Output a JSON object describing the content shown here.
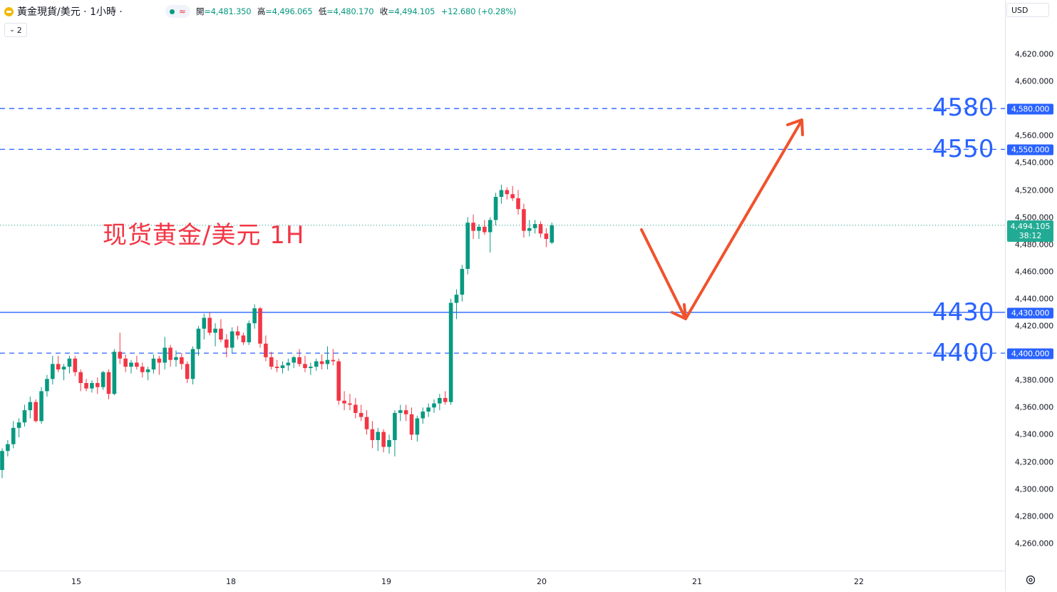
{
  "header": {
    "symbol_title": "黃金現貨/美元 · 1小時 ·",
    "ohlc": [
      {
        "k": "開",
        "v": "=4,481.350"
      },
      {
        "k": "高",
        "v": "=4,496.065"
      },
      {
        "k": "低",
        "v": "=4,480.170"
      },
      {
        "k": "收",
        "v": "=4,494.105"
      }
    ],
    "change": "+12.680 (+0.28%)",
    "indicator_count": "2",
    "currency": "USD"
  },
  "annotation": {
    "label": "现货黄金/美元 1H",
    "levels": [
      "4580",
      "4550",
      "4430",
      "4400"
    ]
  },
  "price_axis": {
    "ticks": [
      "4,620.000",
      "4,600.000",
      "4,560.000",
      "4,540.000",
      "4,520.000",
      "4,500.000",
      "4,480.000",
      "4,460.000",
      "4,440.000",
      "4,420.000",
      "4,380.000",
      "4,360.000",
      "4,340.000",
      "4,320.000",
      "4,300.000",
      "4,280.000",
      "4,260.000"
    ],
    "tags": [
      "4,580.000",
      "4,550.000",
      "4,430.000",
      "4,400.000"
    ],
    "current_price": "4,494.105",
    "countdown": "38:12"
  },
  "time_axis": {
    "labels": [
      "15",
      "18",
      "19",
      "20",
      "21",
      "22"
    ]
  },
  "colors": {
    "up": "#089981",
    "down": "#f23645",
    "level_line": "#2962ff",
    "arrow": "#f0522d",
    "current_tag": "#22ab94"
  },
  "chart_data": {
    "type": "candlestick",
    "title": "黃金現貨/美元 · 1小時",
    "ylim": [
      4250,
      4630
    ],
    "x_labels": [
      "15",
      "18",
      "19",
      "20",
      "21",
      "22"
    ],
    "horizontal_levels": [
      4580,
      4550,
      4430,
      4400
    ],
    "current_price": 4494.105,
    "candles": [
      [
        4314,
        4330,
        4308,
        4328
      ],
      [
        4328,
        4336,
        4324,
        4333
      ],
      [
        4333,
        4350,
        4330,
        4345
      ],
      [
        4345,
        4352,
        4338,
        4349
      ],
      [
        4349,
        4362,
        4346,
        4358
      ],
      [
        4358,
        4368,
        4352,
        4364
      ],
      [
        4364,
        4366,
        4349,
        4350
      ],
      [
        4350,
        4375,
        4348,
        4372
      ],
      [
        4372,
        4384,
        4368,
        4381
      ],
      [
        4381,
        4398,
        4377,
        4392
      ],
      [
        4392,
        4398,
        4386,
        4388
      ],
      [
        4388,
        4392,
        4380,
        4390
      ],
      [
        4390,
        4398,
        4385,
        4396
      ],
      [
        4396,
        4398,
        4383,
        4386
      ],
      [
        4386,
        4388,
        4372,
        4378
      ],
      [
        4378,
        4381,
        4372,
        4374
      ],
      [
        4374,
        4380,
        4371,
        4378
      ],
      [
        4378,
        4382,
        4370,
        4375
      ],
      [
        4375,
        4387,
        4373,
        4386
      ],
      [
        4386,
        4388,
        4366,
        4370
      ],
      [
        4370,
        4403,
        4369,
        4401
      ],
      [
        4401,
        4415,
        4392,
        4396
      ],
      [
        4396,
        4399,
        4386,
        4390
      ],
      [
        4390,
        4395,
        4385,
        4393
      ],
      [
        4393,
        4398,
        4388,
        4390
      ],
      [
        4390,
        4393,
        4382,
        4386
      ],
      [
        4386,
        4390,
        4380,
        4388
      ],
      [
        4388,
        4399,
        4385,
        4396
      ],
      [
        4396,
        4398,
        4384,
        4393
      ],
      [
        4393,
        4412,
        4388,
        4404
      ],
      [
        4404,
        4406,
        4390,
        4395
      ],
      [
        4395,
        4402,
        4390,
        4397
      ],
      [
        4397,
        4400,
        4388,
        4392
      ],
      [
        4392,
        4394,
        4378,
        4381
      ],
      [
        4381,
        4405,
        4377,
        4403
      ],
      [
        4403,
        4420,
        4398,
        4418
      ],
      [
        4418,
        4429,
        4410,
        4426
      ],
      [
        4426,
        4430,
        4413,
        4415
      ],
      [
        4415,
        4422,
        4405,
        4418
      ],
      [
        4418,
        4425,
        4408,
        4410
      ],
      [
        4410,
        4414,
        4397,
        4404
      ],
      [
        4404,
        4419,
        4400,
        4416
      ],
      [
        4416,
        4420,
        4410,
        4413
      ],
      [
        4413,
        4415,
        4406,
        4408
      ],
      [
        4408,
        4424,
        4406,
        4422
      ],
      [
        4422,
        4436,
        4418,
        4433
      ],
      [
        4433,
        4434,
        4404,
        4407
      ],
      [
        4407,
        4413,
        4394,
        4397
      ],
      [
        4397,
        4401,
        4388,
        4390
      ],
      [
        4390,
        4395,
        4386,
        4389
      ],
      [
        4389,
        4394,
        4385,
        4391
      ],
      [
        4391,
        4396,
        4387,
        4393
      ],
      [
        4393,
        4398,
        4389,
        4397
      ],
      [
        4397,
        4403,
        4390,
        4392
      ],
      [
        4392,
        4398,
        4386,
        4389
      ],
      [
        4389,
        4393,
        4384,
        4390
      ],
      [
        4390,
        4396,
        4387,
        4394
      ],
      [
        4394,
        4399,
        4388,
        4392
      ],
      [
        4392,
        4405,
        4388,
        4395
      ],
      [
        4395,
        4403,
        4391,
        4394
      ],
      [
        4394,
        4396,
        4362,
        4365
      ],
      [
        4365,
        4372,
        4358,
        4363
      ],
      [
        4363,
        4370,
        4358,
        4362
      ],
      [
        4362,
        4367,
        4352,
        4356
      ],
      [
        4356,
        4362,
        4350,
        4353
      ],
      [
        4353,
        4358,
        4340,
        4344
      ],
      [
        4344,
        4350,
        4330,
        4336
      ],
      [
        4336,
        4345,
        4328,
        4342
      ],
      [
        4342,
        4344,
        4327,
        4331
      ],
      [
        4331,
        4340,
        4326,
        4336
      ],
      [
        4336,
        4358,
        4324,
        4356
      ],
      [
        4356,
        4362,
        4350,
        4358
      ],
      [
        4358,
        4362,
        4350,
        4355
      ],
      [
        4355,
        4360,
        4336,
        4340
      ],
      [
        4340,
        4354,
        4335,
        4352
      ],
      [
        4352,
        4360,
        4348,
        4357
      ],
      [
        4357,
        4363,
        4353,
        4360
      ],
      [
        4360,
        4366,
        4356,
        4363
      ],
      [
        4363,
        4370,
        4358,
        4367
      ],
      [
        4367,
        4372,
        4362,
        4364
      ],
      [
        4364,
        4440,
        4362,
        4437
      ],
      [
        4437,
        4447,
        4425,
        4443
      ],
      [
        4443,
        4465,
        4438,
        4462
      ],
      [
        4462,
        4500,
        4458,
        4496
      ],
      [
        4496,
        4502,
        4484,
        4490
      ],
      [
        4490,
        4495,
        4484,
        4493
      ],
      [
        4493,
        4498,
        4487,
        4489
      ],
      [
        4489,
        4500,
        4474,
        4498
      ],
      [
        4498,
        4518,
        4494,
        4515
      ],
      [
        4515,
        4524,
        4510,
        4520
      ],
      [
        4520,
        4522,
        4513,
        4517
      ],
      [
        4517,
        4523,
        4512,
        4514
      ],
      [
        4514,
        4520,
        4502,
        4506
      ],
      [
        4506,
        4510,
        4485,
        4490
      ],
      [
        4490,
        4498,
        4486,
        4492
      ],
      [
        4492,
        4498,
        4488,
        4495
      ],
      [
        4495,
        4497,
        4485,
        4488
      ],
      [
        4488,
        4492,
        4478,
        4484
      ],
      [
        4481.35,
        4496.065,
        4480.17,
        4494.105
      ]
    ]
  }
}
